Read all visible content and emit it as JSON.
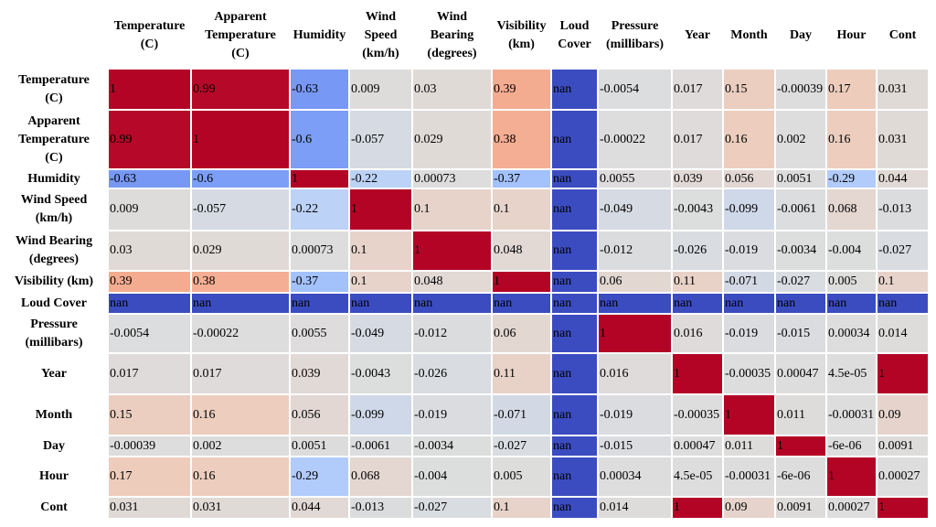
{
  "chart_data": {
    "type": "heatmap",
    "title": "",
    "colormap": "coolwarm",
    "columns": [
      "Temperature\n(C)",
      "Apparent\nTemperature\n(C)",
      "Humidity",
      "Wind\nSpeed\n(km/h)",
      "Wind\nBearing\n(degrees)",
      "Visibility\n(km)",
      "Loud\nCover",
      "Pressure\n(millibars)",
      "Year",
      "Month",
      "Day",
      "Hour",
      "Cont"
    ],
    "rows": [
      "Temperature\n(C)",
      "Apparent\nTemperature\n(C)",
      "Humidity",
      "Wind Speed\n(km/h)",
      "Wind Bearing\n(degrees)",
      "Visibility (km)",
      "Loud Cover",
      "Pressure\n(millibars)",
      "Year",
      "Month",
      "Day",
      "Hour",
      "Cont"
    ],
    "values": [
      [
        "1",
        "0.99",
        "-0.63",
        "0.009",
        "0.03",
        "0.39",
        "nan",
        "-0.0054",
        "0.017",
        "0.15",
        "-0.00039",
        "0.17",
        "0.031"
      ],
      [
        "0.99",
        "1",
        "-0.6",
        "-0.057",
        "0.029",
        "0.38",
        "nan",
        "-0.00022",
        "0.017",
        "0.16",
        "0.002",
        "0.16",
        "0.031"
      ],
      [
        "-0.63",
        "-0.6",
        "1",
        "-0.22",
        "0.00073",
        "-0.37",
        "nan",
        "0.0055",
        "0.039",
        "0.056",
        "0.0051",
        "-0.29",
        "0.044"
      ],
      [
        "0.009",
        "-0.057",
        "-0.22",
        "1",
        "0.1",
        "0.1",
        "nan",
        "-0.049",
        "-0.0043",
        "-0.099",
        "-0.0061",
        "0.068",
        "-0.013"
      ],
      [
        "0.03",
        "0.029",
        "0.00073",
        "0.1",
        "1",
        "0.048",
        "nan",
        "-0.012",
        "-0.026",
        "-0.019",
        "-0.0034",
        "-0.004",
        "-0.027"
      ],
      [
        "0.39",
        "0.38",
        "-0.37",
        "0.1",
        "0.048",
        "1",
        "nan",
        "0.06",
        "0.11",
        "-0.071",
        "-0.027",
        "0.005",
        "0.1"
      ],
      [
        "nan",
        "nan",
        "nan",
        "nan",
        "nan",
        "nan",
        "nan",
        "nan",
        "nan",
        "nan",
        "nan",
        "nan",
        "nan"
      ],
      [
        "-0.0054",
        "-0.00022",
        "0.0055",
        "-0.049",
        "-0.012",
        "0.06",
        "nan",
        "1",
        "0.016",
        "-0.019",
        "-0.015",
        "0.00034",
        "0.014"
      ],
      [
        "0.017",
        "0.017",
        "0.039",
        "-0.0043",
        "-0.026",
        "0.11",
        "nan",
        "0.016",
        "1",
        "-0.00035",
        "0.00047",
        "4.5e-05",
        "1"
      ],
      [
        "0.15",
        "0.16",
        "0.056",
        "-0.099",
        "-0.019",
        "-0.071",
        "nan",
        "-0.019",
        "-0.00035",
        "1",
        "0.011",
        "-0.00031",
        "0.09"
      ],
      [
        "-0.00039",
        "0.002",
        "0.0051",
        "-0.0061",
        "-0.0034",
        "-0.027",
        "nan",
        "-0.015",
        "0.00047",
        "0.011",
        "1",
        "-6e-06",
        "0.0091"
      ],
      [
        "0.17",
        "0.16",
        "-0.29",
        "0.068",
        "-0.004",
        "0.005",
        "nan",
        "0.00034",
        "4.5e-05",
        "-0.00031",
        "-6e-06",
        "1",
        "0.00027"
      ],
      [
        "0.031",
        "0.031",
        "0.044",
        "-0.013",
        "-0.027",
        "0.1",
        "nan",
        "0.014",
        "1",
        "0.09",
        "0.0091",
        "0.00027",
        "1"
      ]
    ]
  }
}
